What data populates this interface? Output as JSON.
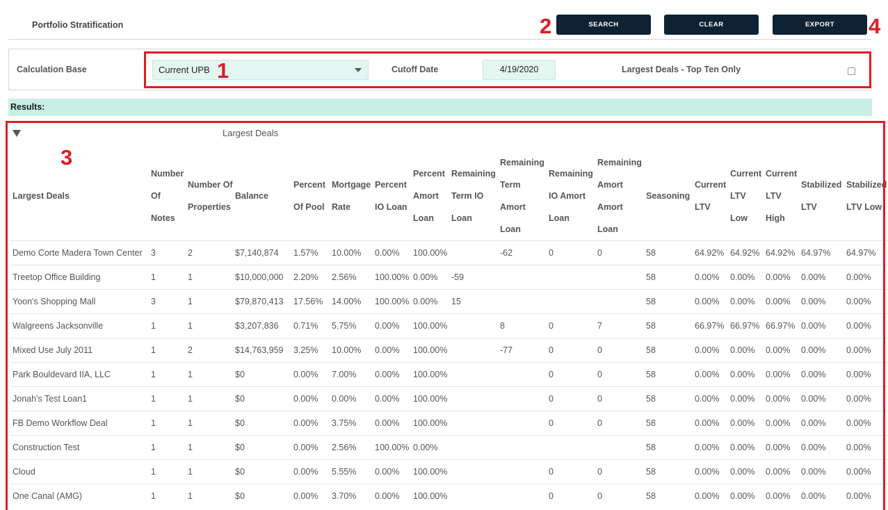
{
  "header": {
    "title": "Portfolio Stratification",
    "search_label": "SEARCH",
    "clear_label": "CLEAR",
    "export_label": "EXPORT"
  },
  "filters": {
    "calc_base_label": "Calculation Base",
    "calc_base_value": "Current UPB",
    "cutoff_label": "Cutoff Date",
    "cutoff_value": "4/19/2020",
    "top_ten_label": "Largest Deals - Top Ten Only",
    "top_ten_checked": false
  },
  "results_label": "Results:",
  "group": {
    "title": "Largest Deals"
  },
  "annotations": [
    "1",
    "2",
    "3",
    "4"
  ],
  "colors": {
    "button_bg": "#0e2233",
    "input_bg": "#e3f6f1",
    "results_bar": "#c8efe5",
    "annotation_red": "#e01b22"
  },
  "table": {
    "columns": [
      "Largest Deals",
      "Number Of Notes",
      "Number Of Properties",
      "Balance",
      "Percent Of Pool",
      "Mortgage Rate",
      "Percent IO Loan",
      "Percent Amort Loan",
      "Remaining Term IO Loan",
      "Remaining Term Amort Loan",
      "Remaining IO Amort Loan",
      "Remaining Amort Amort Loan",
      "Seasoning",
      "Current LTV",
      "Current LTV Low",
      "Current LTV High",
      "Stabilized LTV",
      "Stabilized LTV Low"
    ],
    "rows": [
      [
        "Demo Corte Madera Town Center",
        "3",
        "2",
        "$7,140,874",
        "1.57%",
        "10.00%",
        "0.00%",
        "100.00%",
        "",
        "-62",
        "0",
        "0",
        "58",
        "64.92%",
        "64.92%",
        "64.92%",
        "64.97%",
        "64.97%"
      ],
      [
        "Treetop Office Building",
        "1",
        "1",
        "$10,000,000",
        "2.20%",
        "2.56%",
        "100.00%",
        "0.00%",
        "-59",
        "",
        "",
        "",
        "58",
        "0.00%",
        "0.00%",
        "0.00%",
        "0.00%",
        "0.00%"
      ],
      [
        "Yoon's Shopping Mall",
        "3",
        "1",
        "$79,870,413",
        "17.56%",
        "14.00%",
        "100.00%",
        "0.00%",
        "15",
        "",
        "",
        "",
        "58",
        "0.00%",
        "0.00%",
        "0.00%",
        "0.00%",
        "0.00%"
      ],
      [
        "Walgreens Jacksonville",
        "1",
        "1",
        "$3,207,836",
        "0.71%",
        "5.75%",
        "0.00%",
        "100.00%",
        "",
        "8",
        "0",
        "7",
        "58",
        "66.97%",
        "66.97%",
        "66.97%",
        "0.00%",
        "0.00%"
      ],
      [
        "Mixed Use July 2011",
        "1",
        "2",
        "$14,763,959",
        "3.25%",
        "10.00%",
        "0.00%",
        "100.00%",
        "",
        "-77",
        "0",
        "0",
        "58",
        "0.00%",
        "0.00%",
        "0.00%",
        "0.00%",
        "0.00%"
      ],
      [
        "Park Bouldevard IIA, LLC",
        "1",
        "1",
        "$0",
        "0.00%",
        "7.00%",
        "0.00%",
        "100.00%",
        "",
        "",
        "0",
        "0",
        "58",
        "0.00%",
        "0.00%",
        "0.00%",
        "0.00%",
        "0.00%"
      ],
      [
        "Jonah's Test Loan1",
        "1",
        "1",
        "$0",
        "0.00%",
        "0.00%",
        "0.00%",
        "100.00%",
        "",
        "",
        "0",
        "0",
        "58",
        "0.00%",
        "0.00%",
        "0.00%",
        "0.00%",
        "0.00%"
      ],
      [
        "FB Demo Workflow Deal",
        "1",
        "1",
        "$0",
        "0.00%",
        "3.75%",
        "0.00%",
        "100.00%",
        "",
        "",
        "0",
        "0",
        "58",
        "0.00%",
        "0.00%",
        "0.00%",
        "0.00%",
        "0.00%"
      ],
      [
        "Construction Test",
        "1",
        "1",
        "$0",
        "0.00%",
        "2.56%",
        "100.00%",
        "0.00%",
        "",
        "",
        "",
        "",
        "58",
        "0.00%",
        "0.00%",
        "0.00%",
        "0.00%",
        "0.00%"
      ],
      [
        "Cloud",
        "1",
        "1",
        "$0",
        "0.00%",
        "5.55%",
        "0.00%",
        "100.00%",
        "",
        "",
        "0",
        "0",
        "58",
        "0.00%",
        "0.00%",
        "0.00%",
        "0.00%",
        "0.00%"
      ],
      [
        "One Canal (AMG)",
        "1",
        "1",
        "$0",
        "0.00%",
        "3.70%",
        "0.00%",
        "100.00%",
        "",
        "",
        "0",
        "0",
        "58",
        "0.00%",
        "0.00%",
        "0.00%",
        "0.00%",
        "0.00%"
      ]
    ]
  }
}
